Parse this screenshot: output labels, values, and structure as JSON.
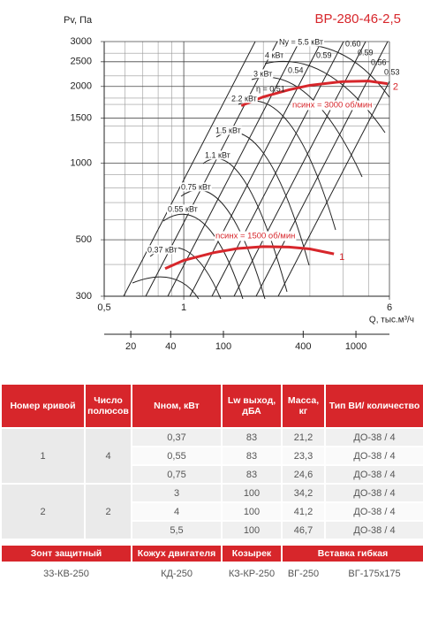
{
  "chart_data": {
    "type": "line",
    "title": "ВР-280-46-2,5",
    "y_label": "Pv, Па",
    "x_label": "Q, тыс.м³/ч",
    "log_x": true,
    "log_y": true,
    "grid": true,
    "xlim": [
      0.5,
      6
    ],
    "xticks": [
      {
        "value": 0.5,
        "label": "0,5"
      },
      1,
      6
    ],
    "xminor": [
      0.6,
      0.7,
      0.8,
      0.9,
      2,
      3,
      4,
      5
    ],
    "ylim": [
      300,
      3000
    ],
    "yticks": [
      300,
      500,
      1000,
      1500,
      2000,
      2500,
      3000
    ],
    "yminor": [
      400,
      600,
      700,
      800,
      900,
      1200,
      1400,
      1700,
      1800,
      2200,
      2700
    ],
    "x2lim": [
      12.6,
      1790
    ],
    "x2ticks": [
      20,
      40,
      100,
      400,
      1000
    ],
    "series": [
      {
        "name": "1",
        "color": "#d7262b",
        "x": [
          0.85,
          1.0,
          1.3,
          1.6,
          2.0,
          2.5,
          3.0,
          3.7
        ],
        "values": [
          385,
          415,
          445,
          462,
          470,
          468,
          460,
          440
        ]
      },
      {
        "name": "2",
        "color": "#d7262b",
        "x": [
          1.65,
          2.0,
          2.5,
          3.0,
          4.0,
          5.0,
          5.9
        ],
        "values": [
          1680,
          1820,
          1940,
          2020,
          2090,
          2100,
          2050
        ]
      }
    ],
    "annotations": [
      "Ny = 5.5 кВт",
      "4 кВт",
      "3 кВт",
      "2.2 кВт",
      "1.5 кВт",
      "1.1 кВт",
      "0.75 кВт",
      "0.55 кВт",
      "0.37 кВт",
      "η = 0.51",
      "0.54",
      "0.59",
      "0.60",
      "0.59",
      "0.56",
      "0.53",
      "nсинх = 1500 об/мин",
      "nсинх = 3000 об/мин"
    ]
  },
  "table": {
    "header": [
      "Номер кривой",
      "Число полюсов",
      "Nном, кВт",
      "Lw выход, дБА",
      "Масса, кг",
      "Тип ВИ/ количество"
    ],
    "rows": [
      {
        "curve": "1",
        "poles": "4",
        "items": [
          [
            "0,37",
            "83",
            "21,2",
            "ДО-38 / 4"
          ],
          [
            "0,55",
            "83",
            "23,3",
            "ДО-38 / 4"
          ],
          [
            "0,75",
            "83",
            "24,6",
            "ДО-38 / 4"
          ]
        ]
      },
      {
        "curve": "2",
        "poles": "2",
        "items": [
          [
            "3",
            "100",
            "34,2",
            "ДО-38 / 4"
          ],
          [
            "4",
            "100",
            "41,2",
            "ДО-38 / 4"
          ],
          [
            "5,5",
            "100",
            "46,7",
            "ДО-38 / 4"
          ]
        ]
      }
    ]
  },
  "accessories": {
    "header": [
      "Зонт защитный",
      "Кожух двигателя",
      "Козырек",
      "Вставка гибкая"
    ],
    "values": [
      "33-КВ-250",
      "КД-250",
      "КЗ-КР-250",
      "ВГ-250",
      "ВГ-175х175"
    ]
  }
}
